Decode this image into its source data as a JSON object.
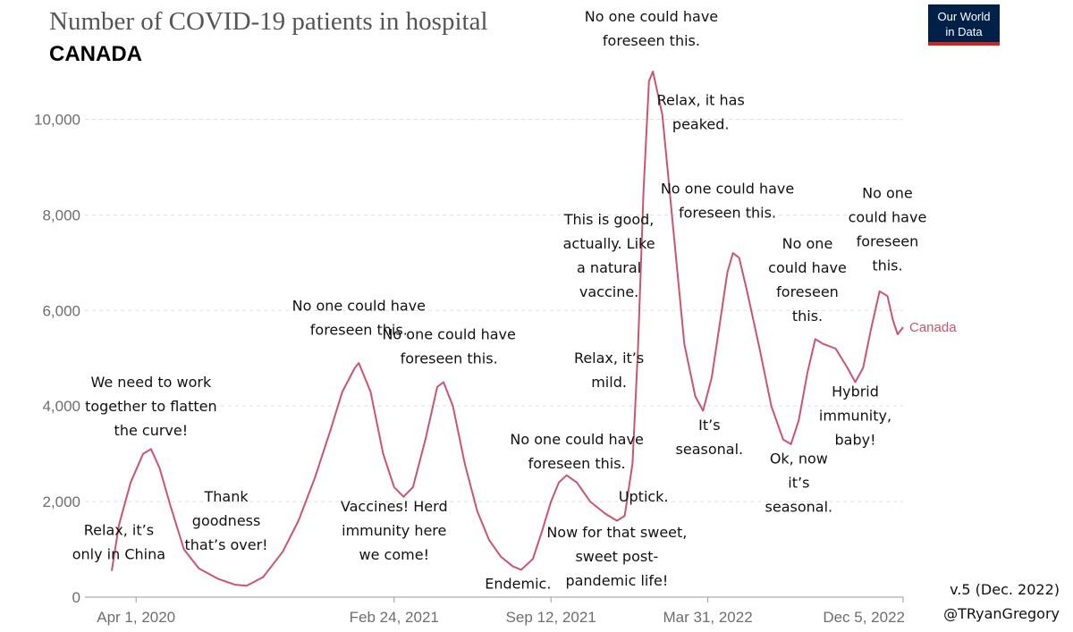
{
  "chart_data": {
    "type": "line",
    "title": "Number of COVID-19 patients in hospital",
    "subtitle": "CANADA",
    "xlabel": "",
    "ylabel": "",
    "ylim": [
      0,
      11000
    ],
    "yticks": [
      0,
      2000,
      4000,
      6000,
      8000,
      10000
    ],
    "ytick_labels": [
      "0",
      "2,000",
      "4,000",
      "6,000",
      "8,000",
      "10,000"
    ],
    "xlim": [
      "2020-03-01",
      "2022-12-05"
    ],
    "xticks": [
      "2020-04-01",
      "2021-02-24",
      "2021-09-12",
      "2022-03-31",
      "2022-12-05"
    ],
    "xtick_labels": [
      "Apr 1, 2020",
      "Feb 24, 2021",
      "Sep 12, 2021",
      "Mar 31, 2022",
      "Dec 5, 2022"
    ],
    "grid": true,
    "series": [
      {
        "name": "Canada",
        "color": "#ca5570",
        "points": [
          [
            "2020-03-01",
            550
          ],
          [
            "2020-03-10",
            1500
          ],
          [
            "2020-03-25",
            2400
          ],
          [
            "2020-04-10",
            3000
          ],
          [
            "2020-04-20",
            3100
          ],
          [
            "2020-05-01",
            2700
          ],
          [
            "2020-05-15",
            1900
          ],
          [
            "2020-06-01",
            1000
          ],
          [
            "2020-06-20",
            600
          ],
          [
            "2020-07-15",
            380
          ],
          [
            "2020-08-05",
            260
          ],
          [
            "2020-08-20",
            240
          ],
          [
            "2020-09-10",
            420
          ],
          [
            "2020-10-05",
            950
          ],
          [
            "2020-10-25",
            1600
          ],
          [
            "2020-11-15",
            2500
          ],
          [
            "2020-12-05",
            3500
          ],
          [
            "2020-12-20",
            4300
          ],
          [
            "2021-01-05",
            4800
          ],
          [
            "2021-01-10",
            4900
          ],
          [
            "2021-01-25",
            4300
          ],
          [
            "2021-02-10",
            3000
          ],
          [
            "2021-02-24",
            2300
          ],
          [
            "2021-03-08",
            2100
          ],
          [
            "2021-03-20",
            2300
          ],
          [
            "2021-04-05",
            3300
          ],
          [
            "2021-04-20",
            4400
          ],
          [
            "2021-04-28",
            4500
          ],
          [
            "2021-05-10",
            4000
          ],
          [
            "2021-05-25",
            2800
          ],
          [
            "2021-06-10",
            1800
          ],
          [
            "2021-06-25",
            1200
          ],
          [
            "2021-07-10",
            850
          ],
          [
            "2021-07-25",
            650
          ],
          [
            "2021-08-05",
            570
          ],
          [
            "2021-08-20",
            800
          ],
          [
            "2021-09-01",
            1400
          ],
          [
            "2021-09-12",
            2000
          ],
          [
            "2021-09-22",
            2400
          ],
          [
            "2021-10-02",
            2550
          ],
          [
            "2021-10-15",
            2400
          ],
          [
            "2021-11-01",
            2000
          ],
          [
            "2021-11-20",
            1750
          ],
          [
            "2021-12-05",
            1600
          ],
          [
            "2021-12-15",
            1700
          ],
          [
            "2021-12-25",
            2800
          ],
          [
            "2022-01-01",
            5200
          ],
          [
            "2022-01-08",
            8500
          ],
          [
            "2022-01-15",
            10800
          ],
          [
            "2022-01-20",
            11000
          ],
          [
            "2022-02-01",
            10100
          ],
          [
            "2022-02-15",
            7700
          ],
          [
            "2022-03-01",
            5300
          ],
          [
            "2022-03-15",
            4200
          ],
          [
            "2022-03-25",
            3900
          ],
          [
            "2022-04-05",
            4600
          ],
          [
            "2022-04-15",
            5700
          ],
          [
            "2022-04-25",
            6800
          ],
          [
            "2022-05-02",
            7200
          ],
          [
            "2022-05-10",
            7100
          ],
          [
            "2022-05-20",
            6400
          ],
          [
            "2022-06-05",
            5200
          ],
          [
            "2022-06-20",
            4000
          ],
          [
            "2022-07-05",
            3300
          ],
          [
            "2022-07-15",
            3200
          ],
          [
            "2022-07-25",
            3700
          ],
          [
            "2022-08-05",
            4700
          ],
          [
            "2022-08-15",
            5400
          ],
          [
            "2022-08-25",
            5300
          ],
          [
            "2022-09-10",
            5200
          ],
          [
            "2022-09-25",
            4800
          ],
          [
            "2022-10-05",
            4500
          ],
          [
            "2022-10-15",
            4800
          ],
          [
            "2022-10-25",
            5600
          ],
          [
            "2022-11-05",
            6400
          ],
          [
            "2022-11-15",
            6300
          ],
          [
            "2022-11-22",
            5800
          ],
          [
            "2022-11-28",
            5500
          ],
          [
            "2022-12-05",
            5650
          ]
        ]
      }
    ],
    "annotations": [
      {
        "lines": [
          "Relax, it’s",
          "only in China"
        ],
        "at": [
          "2020-03-10",
          1300
        ]
      },
      {
        "lines": [
          "We need to work",
          "together to flatten",
          "the curve!"
        ],
        "at": [
          "2020-04-20",
          4400
        ]
      },
      {
        "lines": [
          "Thank",
          "goodness",
          "that’s over!"
        ],
        "at": [
          "2020-07-25",
          2000
        ]
      },
      {
        "lines": [
          "No one could have",
          "foreseen this."
        ],
        "at": [
          "2021-01-10",
          6000
        ]
      },
      {
        "lines": [
          "Vaccines! Herd",
          "immunity here",
          "we come!"
        ],
        "at": [
          "2021-02-24",
          1800
        ]
      },
      {
        "lines": [
          "No one could have",
          "foreseen this."
        ],
        "at": [
          "2021-05-05",
          5400
        ]
      },
      {
        "lines": [
          "Endemic."
        ],
        "at": [
          "2021-08-01",
          180
        ]
      },
      {
        "lines": [
          "No one could have",
          "foreseen this."
        ],
        "at": [
          "2021-10-15",
          3200
        ]
      },
      {
        "lines": [
          "Now for that sweet,",
          "sweet post-",
          "pandemic life!"
        ],
        "at": [
          "2021-12-05",
          1250
        ]
      },
      {
        "lines": [
          "Relax, it’s",
          "mild."
        ],
        "at": [
          "2021-11-25",
          4900
        ]
      },
      {
        "lines": [
          "This is good,",
          "actually. Like",
          "a natural",
          "vaccine."
        ],
        "at": [
          "2021-11-25",
          7800
        ]
      },
      {
        "lines": [
          "Uptick."
        ],
        "at": [
          "2022-01-08",
          2000
        ]
      },
      {
        "lines": [
          "No one could have",
          "foreseen this."
        ],
        "at": [
          "2022-01-18",
          12050
        ]
      },
      {
        "lines": [
          "Relax, it has",
          "peaked."
        ],
        "at": [
          "2022-03-22",
          10300
        ]
      },
      {
        "lines": [
          "No one could have",
          "foreseen this."
        ],
        "at": [
          "2022-04-25",
          8450
        ]
      },
      {
        "lines": [
          "It’s",
          "seasonal."
        ],
        "at": [
          "2022-04-02",
          3500
        ]
      },
      {
        "lines": [
          "No one",
          "could have",
          "foreseen",
          "this."
        ],
        "at": [
          "2022-08-05",
          7300
        ]
      },
      {
        "lines": [
          "Ok, now",
          "it’s",
          "seasonal."
        ],
        "at": [
          "2022-07-25",
          2800
        ]
      },
      {
        "lines": [
          "Hybrid",
          "immunity,",
          "baby!"
        ],
        "at": [
          "2022-10-05",
          4200
        ]
      },
      {
        "lines": [
          "No one",
          "could have",
          "foreseen",
          "this."
        ],
        "at": [
          "2022-11-15",
          8350
        ]
      }
    ]
  },
  "logo": {
    "line1": "Our World",
    "line2": "in Data",
    "bg": "#002147",
    "accent": "#ce261e"
  },
  "credit": {
    "version": "v.5 (Dec. 2022)",
    "handle": "@TRyanGregory"
  }
}
